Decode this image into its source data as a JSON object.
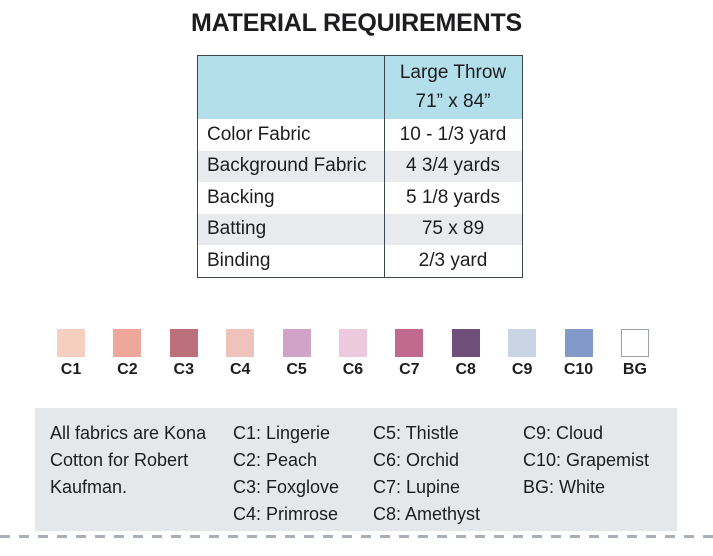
{
  "title": "MATERIAL REQUIREMENTS",
  "table": {
    "header": {
      "line1": "Large Throw",
      "line2": "71” x 84”"
    },
    "rows": [
      {
        "label": "Color Fabric",
        "value": "10 - 1/3 yard"
      },
      {
        "label": "Background Fabric",
        "value": "4 3/4 yards"
      },
      {
        "label": "Backing",
        "value": "5 1/8 yards"
      },
      {
        "label": "Batting",
        "value": "75 x 89"
      },
      {
        "label": "Binding",
        "value": "2/3 yard"
      }
    ]
  },
  "swatches": {
    "items": [
      {
        "label": "C1",
        "color": "#f6cfc0"
      },
      {
        "label": "C2",
        "color": "#efa79c"
      },
      {
        "label": "C3",
        "color": "#bc707c"
      },
      {
        "label": "C4",
        "color": "#f0c2bc"
      },
      {
        "label": "C5",
        "color": "#d2a3c8"
      },
      {
        "label": "C6",
        "color": "#ecc9dd"
      },
      {
        "label": "C7",
        "color": "#c06a90"
      },
      {
        "label": "C8",
        "color": "#6f4f79"
      },
      {
        "label": "C9",
        "color": "#c9d5e5"
      },
      {
        "label": "C10",
        "color": "#8399c8"
      },
      {
        "label": "BG",
        "color": "#ffffff",
        "border": "#9aa0a6"
      }
    ]
  },
  "legend": {
    "note": "All fabrics are Kona Cotton for Robert Kaufman.",
    "columns": [
      [
        "C1: Lingerie",
        "C2: Peach",
        "C3: Foxglove",
        "C4: Primrose"
      ],
      [
        "C5: Thistle",
        "C6: Orchid",
        "C7: Lupine",
        "C8: Amethyst"
      ],
      [
        "C9: Cloud",
        "C10: Grapemist",
        "BG: White"
      ]
    ]
  },
  "theme": {
    "header_bg": "#b3dfeb",
    "stripe_bg": "#e8eaed",
    "legend_bg": "#e4e8ea",
    "table_border": "#3f454c",
    "text": "#1d1d1f",
    "dash": "#aab0b8"
  }
}
